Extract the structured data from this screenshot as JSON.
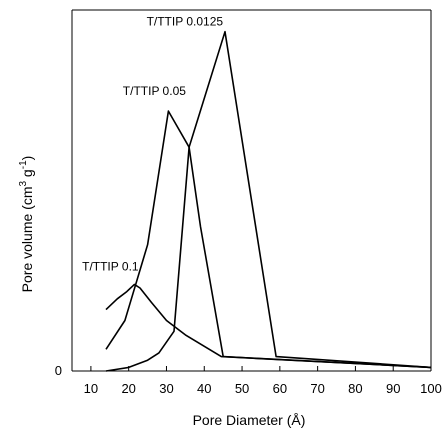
{
  "chart_data": {
    "type": "line",
    "xlabel": "Pore Diameter (Å)",
    "ylabel_main": "Pore volume (cm",
    "ylabel_sup1": "3",
    "ylabel_mid": " g",
    "ylabel_sup2": "-1",
    "ylabel_end": ")",
    "xlim": [
      5,
      100
    ],
    "ylim": [
      0,
      1.0
    ],
    "x_ticks": [
      10,
      20,
      30,
      40,
      50,
      60,
      70,
      80,
      90,
      100
    ],
    "y_ticks": [
      0
    ],
    "grid": false,
    "series": [
      {
        "name": "T/TTIP 0.0125",
        "points": [
          [
            14,
            0.0
          ],
          [
            20,
            0.01
          ],
          [
            25,
            0.03
          ],
          [
            28,
            0.05
          ],
          [
            32,
            0.11
          ],
          [
            36,
            0.62
          ],
          [
            45.5,
            0.94
          ],
          [
            59,
            0.04
          ],
          [
            100,
            0.01
          ]
        ]
      },
      {
        "name": "T/TTIP 0.05",
        "points": [
          [
            14,
            0.06
          ],
          [
            19,
            0.14
          ],
          [
            25,
            0.35
          ],
          [
            30.5,
            0.72
          ],
          [
            36,
            0.62
          ],
          [
            39,
            0.4
          ],
          [
            45,
            0.04
          ],
          [
            100,
            0.01
          ]
        ]
      },
      {
        "name": "T/TTIP 0.1",
        "points": [
          [
            14,
            0.17
          ],
          [
            17,
            0.2
          ],
          [
            19.5,
            0.22
          ],
          [
            21.5,
            0.24
          ],
          [
            23,
            0.23
          ],
          [
            26,
            0.19
          ],
          [
            30,
            0.14
          ],
          [
            35,
            0.1
          ],
          [
            44.5,
            0.04
          ],
          [
            100,
            0.01
          ]
        ]
      }
    ]
  }
}
